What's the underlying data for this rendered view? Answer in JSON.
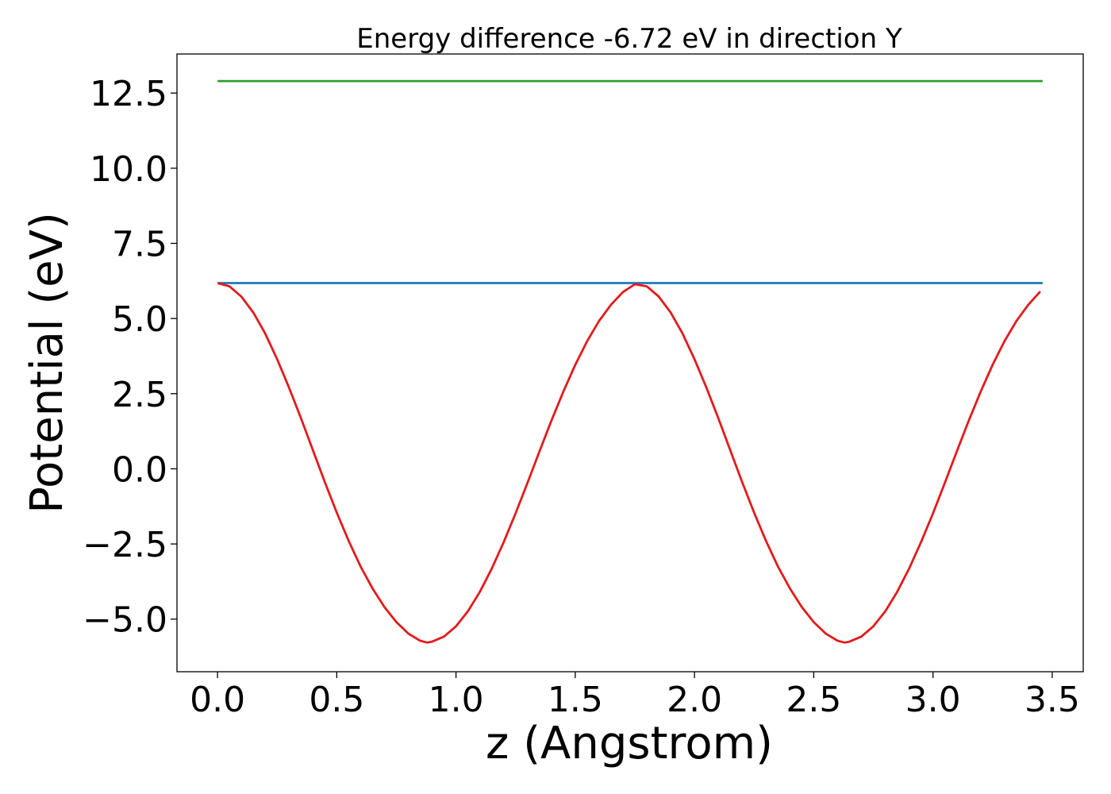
{
  "chart_data": {
    "type": "line",
    "title": "Energy difference -6.72 eV in direction Y",
    "xlabel": "z (Angstrom)",
    "ylabel": "Potential (eV)",
    "xlim": [
      -0.17,
      3.63
    ],
    "ylim": [
      -6.75,
      13.8
    ],
    "xticks": [
      0.0,
      0.5,
      1.0,
      1.5,
      2.0,
      2.5,
      3.0,
      3.5
    ],
    "yticks": [
      -5.0,
      -2.5,
      0.0,
      2.5,
      5.0,
      7.5,
      10.0,
      12.5
    ],
    "xtick_labels": [
      "0.0",
      "0.5",
      "1.0",
      "1.5",
      "2.0",
      "2.5",
      "3.0",
      "3.5"
    ],
    "ytick_labels": [
      "−5.0",
      "−2.5",
      "0.0",
      "2.5",
      "5.0",
      "7.5",
      "10.0",
      "12.5"
    ],
    "grid": false,
    "series": [
      {
        "color": "#2ca02c",
        "x": [
          0.0,
          3.46
        ],
        "y": [
          12.9,
          12.9
        ]
      },
      {
        "color": "#1f77b4",
        "x": [
          0.0,
          3.46
        ],
        "y": [
          6.18,
          6.18
        ]
      },
      {
        "color": "#e41a1c",
        "x": [
          0.0,
          0.05,
          0.1,
          0.15,
          0.2,
          0.25,
          0.3,
          0.35,
          0.4,
          0.45,
          0.5,
          0.55,
          0.6,
          0.65,
          0.7,
          0.75,
          0.8,
          0.85,
          0.88,
          0.9,
          0.95,
          1.0,
          1.05,
          1.1,
          1.15,
          1.2,
          1.25,
          1.3,
          1.35,
          1.4,
          1.45,
          1.5,
          1.55,
          1.6,
          1.65,
          1.7,
          1.75,
          1.8,
          1.85,
          1.9,
          1.95,
          2.0,
          2.05,
          2.1,
          2.15,
          2.2,
          2.25,
          2.3,
          2.35,
          2.4,
          2.45,
          2.5,
          2.55,
          2.6,
          2.63,
          2.65,
          2.7,
          2.75,
          2.8,
          2.85,
          2.9,
          2.95,
          3.0,
          3.05,
          3.1,
          3.15,
          3.2,
          3.25,
          3.3,
          3.35,
          3.4,
          3.45
        ],
        "y": [
          6.18,
          6.07,
          5.73,
          5.2,
          4.5,
          3.65,
          2.7,
          1.68,
          0.62,
          -0.44,
          -1.46,
          -2.4,
          -3.25,
          -3.98,
          -4.6,
          -5.1,
          -5.48,
          -5.72,
          -5.78,
          -5.75,
          -5.58,
          -5.24,
          -4.74,
          -4.09,
          -3.32,
          -2.44,
          -1.48,
          -0.46,
          0.58,
          1.6,
          2.57,
          3.46,
          4.25,
          4.92,
          5.46,
          5.88,
          6.14,
          6.07,
          5.73,
          5.2,
          4.5,
          3.65,
          2.7,
          1.68,
          0.62,
          -0.44,
          -1.46,
          -2.4,
          -3.25,
          -3.98,
          -4.6,
          -5.1,
          -5.48,
          -5.72,
          -5.78,
          -5.75,
          -5.58,
          -5.24,
          -4.74,
          -4.09,
          -3.32,
          -2.44,
          -1.48,
          -0.46,
          0.58,
          1.6,
          2.57,
          3.46,
          4.25,
          4.92,
          5.46,
          5.9
        ]
      }
    ]
  }
}
